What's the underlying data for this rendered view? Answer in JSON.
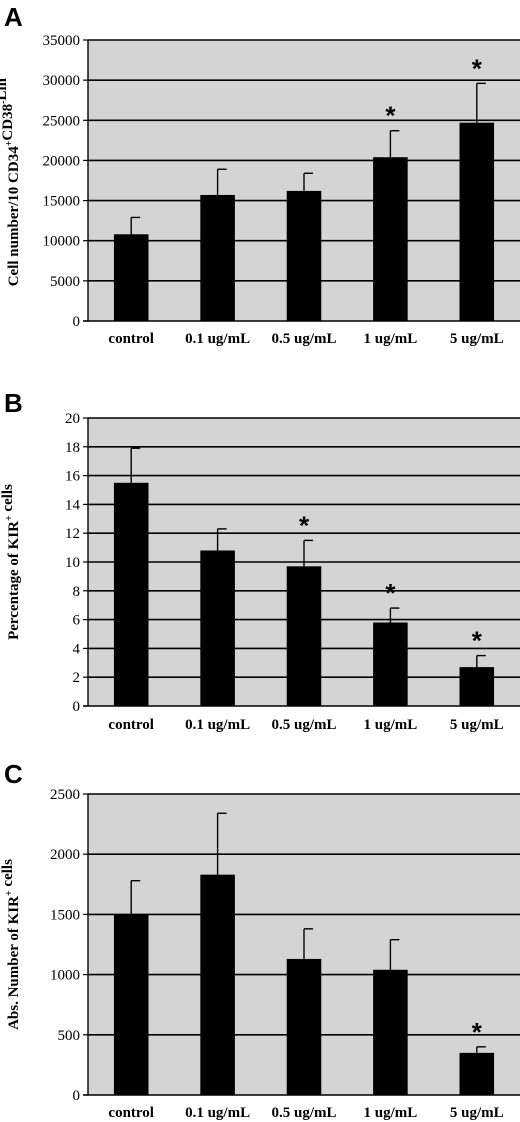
{
  "chart_data": [
    {
      "panel": "A",
      "type": "bar",
      "categories": [
        "control",
        "0.1 ug/mL",
        "0.5 ug/mL",
        "1 ug/mL",
        "5 ug/mL"
      ],
      "values": [
        10800,
        15700,
        16200,
        20400,
        24700
      ],
      "errors": [
        2100,
        3200,
        2200,
        3300,
        4900
      ],
      "significant": [
        false,
        false,
        false,
        true,
        true
      ],
      "ylabel": "Cell number/10 CD34+CD38-Lin-",
      "ylabel_parts": [
        {
          "text": "Cell number/10 CD34",
          "sup": false
        },
        {
          "text": "+",
          "sup": true
        },
        {
          "text": "CD38",
          "sup": false
        },
        {
          "text": "-",
          "sup": true
        },
        {
          "text": "Lin",
          "sup": false
        },
        {
          "text": "-",
          "sup": true
        }
      ],
      "ylim": [
        0,
        35000
      ],
      "yticks": [
        0,
        5000,
        10000,
        15000,
        20000,
        25000,
        30000,
        35000
      ],
      "grid": true,
      "significance_marker": "*"
    },
    {
      "panel": "B",
      "type": "bar",
      "categories": [
        "control",
        "0.1 ug/mL",
        "0.5 ug/mL",
        "1 ug/mL",
        "5 ug/mL"
      ],
      "values": [
        15.5,
        10.8,
        9.7,
        5.8,
        2.7
      ],
      "errors": [
        2.4,
        1.5,
        1.8,
        1.0,
        0.8
      ],
      "significant": [
        false,
        false,
        true,
        true,
        true
      ],
      "ylabel": "Percentage of KIR+ cells",
      "ylabel_parts": [
        {
          "text": "Percentage of KIR",
          "sup": false
        },
        {
          "text": "+",
          "sup": true
        },
        {
          "text": " cells",
          "sup": false
        }
      ],
      "ylim": [
        0,
        20
      ],
      "yticks": [
        0,
        2,
        4,
        6,
        8,
        10,
        12,
        14,
        16,
        18,
        20
      ],
      "grid": true,
      "significance_marker": "*"
    },
    {
      "panel": "C",
      "type": "bar",
      "categories": [
        "control",
        "0.1 ug/mL",
        "0.5 ug/mL",
        "1 ug/mL",
        "5 ug/mL"
      ],
      "values": [
        1500,
        1830,
        1130,
        1040,
        350
      ],
      "errors": [
        280,
        510,
        250,
        250,
        50
      ],
      "significant": [
        false,
        false,
        false,
        false,
        true
      ],
      "ylabel": "Abs. Number of KIR+ cells",
      "ylabel_parts": [
        {
          "text": "Abs. Number of KIR",
          "sup": false
        },
        {
          "text": "+",
          "sup": true
        },
        {
          "text": " cells",
          "sup": false
        }
      ],
      "ylim": [
        0,
        2500
      ],
      "yticks": [
        0,
        500,
        1000,
        1500,
        2000,
        2500
      ],
      "grid": true,
      "significance_marker": "*"
    }
  ],
  "colors": {
    "plot_background": "#d4d4d4",
    "bar": "#000000",
    "grid": "#000000"
  }
}
